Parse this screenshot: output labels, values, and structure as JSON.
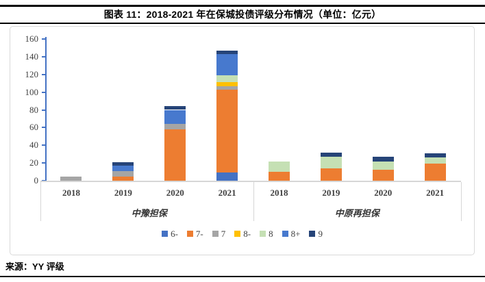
{
  "title": "图表 11：2018-2021 年在保城投债评级分布情况（单位：亿元）",
  "source": {
    "label": "来源：YY 评级"
  },
  "chart_data": {
    "type": "bar",
    "subtype": "stacked",
    "unit": "亿元",
    "ylim": [
      0,
      160
    ],
    "yticks": [
      0,
      20,
      40,
      60,
      80,
      100,
      120,
      140,
      160
    ],
    "grid": "off",
    "legend_position": "bottom",
    "series_names": [
      "6-",
      "7-",
      "7",
      "8-",
      "8",
      "8+",
      "9"
    ],
    "series_colors": {
      "6-": "#4472C4",
      "7-": "#ED7D31",
      "7": "#A5A5A5",
      "8-": "#FFC000",
      "8": "#C5E0B4",
      "8+": "#4779CE",
      "9": "#264478"
    },
    "axis_colors": {
      "y_axis": "#4472C4",
      "x_axis": "#D6D6D6",
      "category_separator": "#D6D6D6"
    },
    "groups": [
      {
        "label": "中豫担保",
        "bars": [
          {
            "year": "2018",
            "values": {
              "7": 5
            }
          },
          {
            "year": "2019",
            "values": {
              "7-": 5,
              "7": 6,
              "8+": 6,
              "9": 4
            }
          },
          {
            "year": "2020",
            "values": {
              "7-": 58,
              "7": 6,
              "8+": 16,
              "9": 4
            }
          },
          {
            "year": "2021",
            "values": {
              "6-": 9,
              "7-": 94,
              "7": 4,
              "8-": 4,
              "8": 8,
              "8+": 24,
              "9": 4
            }
          }
        ]
      },
      {
        "label": "中原再担保",
        "bars": [
          {
            "year": "2018",
            "values": {
              "7-": 10,
              "8": 12
            }
          },
          {
            "year": "2019",
            "values": {
              "7-": 14,
              "8": 13,
              "9": 5
            }
          },
          {
            "year": "2020",
            "values": {
              "7-": 12,
              "8": 10,
              "9": 5
            }
          },
          {
            "year": "2021",
            "values": {
              "7-": 19,
              "8": 7,
              "9": 5
            }
          }
        ]
      }
    ]
  }
}
